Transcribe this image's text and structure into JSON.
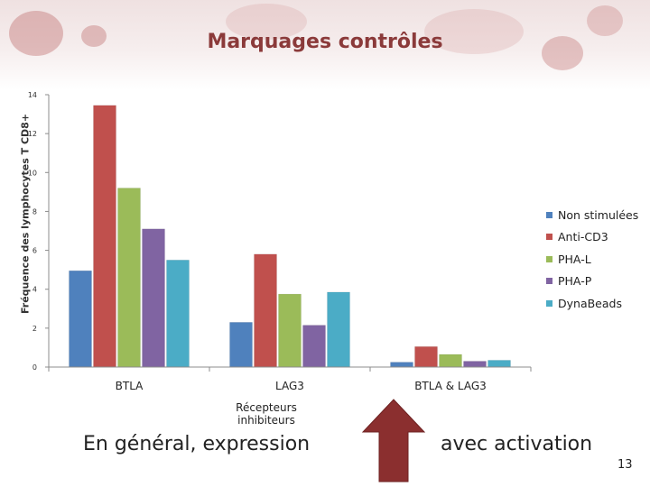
{
  "slide": {
    "title": "Marquages contrôles",
    "caption_left": "En général, expression",
    "caption_right": "avec activation",
    "page_number": "13"
  },
  "chart_data": {
    "type": "bar",
    "title": "",
    "xlabel": "Récepteurs inhibiteurs",
    "ylabel": "Fréquence des lymphocytes T CD8+",
    "categories": [
      "BTLA",
      "LAG3",
      "BTLA & LAG3"
    ],
    "ylim": [
      0,
      14
    ],
    "yticks": [
      "0",
      "2",
      "4",
      "6",
      "8",
      "10",
      "12",
      "14"
    ],
    "grid": false,
    "legend_position": "right",
    "series": [
      {
        "name": "Non stimulées",
        "color": "#4f81bd",
        "values": [
          4.95,
          2.3,
          0.25
        ]
      },
      {
        "name": "Anti-CD3",
        "color": "#c0504d",
        "values": [
          13.45,
          5.8,
          1.05
        ]
      },
      {
        "name": "PHA-L",
        "color": "#9bbb59",
        "values": [
          9.2,
          3.75,
          0.65
        ]
      },
      {
        "name": "PHA-P",
        "color": "#8064a2",
        "values": [
          7.1,
          2.15,
          0.3
        ]
      },
      {
        "name": "DynaBeads",
        "color": "#4bacc6",
        "values": [
          5.5,
          3.85,
          0.35
        ]
      }
    ]
  },
  "arrow": {
    "color": "#8b2f2f"
  }
}
